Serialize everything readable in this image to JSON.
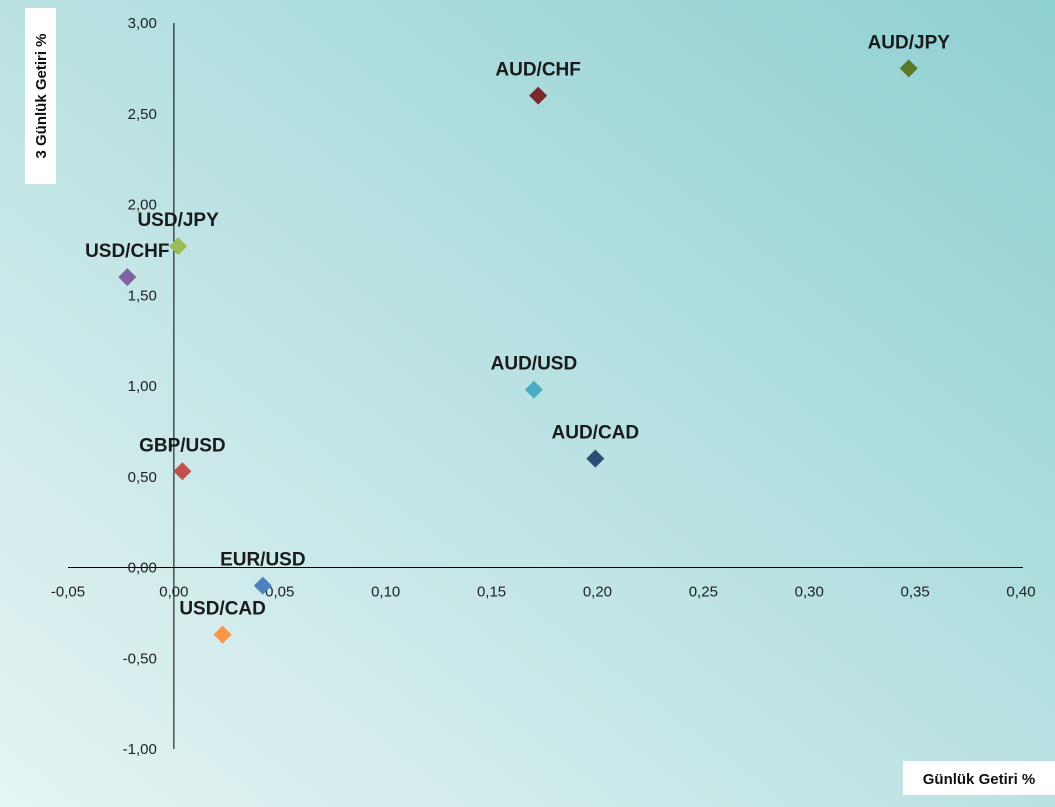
{
  "chart_data": {
    "type": "scatter",
    "xlabel": "Günlük Getiri %",
    "ylabel": "3 Günlük Getiri %",
    "xlim": [
      -0.05,
      0.4
    ],
    "ylim": [
      -1.0,
      3.0
    ],
    "x_ticks": [
      -0.05,
      0.0,
      0.05,
      0.1,
      0.15,
      0.2,
      0.25,
      0.3,
      0.35,
      0.4
    ],
    "y_ticks": [
      -1.0,
      -0.5,
      0.0,
      0.5,
      1.0,
      1.5,
      2.0,
      2.5,
      3.0
    ],
    "x_tick_labels": [
      "-0,05",
      "0,00",
      "0,05",
      "0,10",
      "0,15",
      "0,20",
      "0,25",
      "0,30",
      "0,35",
      "0,40"
    ],
    "y_tick_labels": [
      "-1,00",
      "-0,50",
      "0,00",
      "0,50",
      "1,00",
      "1,50",
      "2,00",
      "2,50",
      "3,00"
    ],
    "grid": false,
    "legend": "none",
    "marker": "diamond",
    "background_gradient": [
      "#e6f4f4",
      "#8fd0d2"
    ],
    "points": [
      {
        "label": "AUD/JPY",
        "x": 0.347,
        "y": 2.75,
        "color": "#5a7a2a"
      },
      {
        "label": "AUD/CHF",
        "x": 0.172,
        "y": 2.6,
        "color": "#7a2a2a"
      },
      {
        "label": "USD/JPY",
        "x": 0.002,
        "y": 1.77,
        "color": "#9bbb59"
      },
      {
        "label": "USD/CHF",
        "x": -0.022,
        "y": 1.6,
        "color": "#8064a2"
      },
      {
        "label": "AUD/USD",
        "x": 0.17,
        "y": 0.98,
        "color": "#4bacc6"
      },
      {
        "label": "AUD/CAD",
        "x": 0.199,
        "y": 0.6,
        "color": "#2c4d75"
      },
      {
        "label": "GBP/USD",
        "x": 0.004,
        "y": 0.53,
        "color": "#c0504d"
      },
      {
        "label": "EUR/USD",
        "x": 0.042,
        "y": -0.1,
        "color": "#4f81bd"
      },
      {
        "label": "USD/CAD",
        "x": 0.023,
        "y": -0.37,
        "color": "#f79646"
      }
    ]
  }
}
